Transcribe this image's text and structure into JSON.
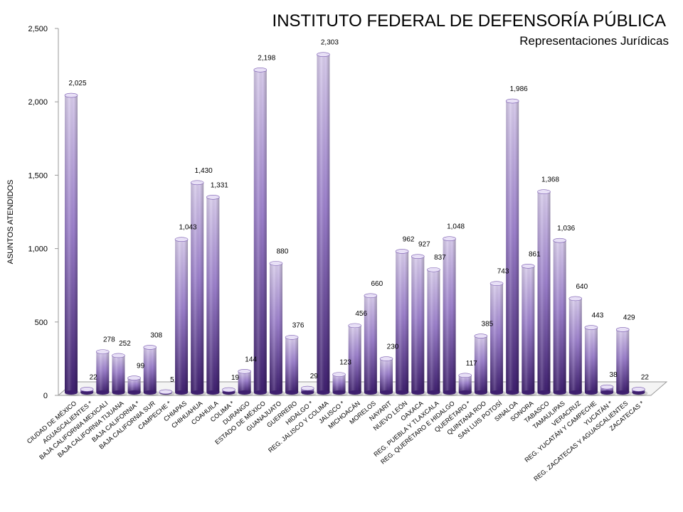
{
  "chart_data": {
    "type": "bar",
    "title": "INSTITUTO FEDERAL DE DEFENSORÍA PÚBLICA",
    "subtitle": "Representaciones  Jurídicas",
    "xlabel": "",
    "ylabel": "ASUNTOS ATENDIDOS",
    "ylim": [
      0,
      2500
    ],
    "yticks": [
      "0",
      "500",
      "1,000",
      "1,500",
      "2,000",
      "2,500"
    ],
    "ytick_values": [
      0,
      500,
      1000,
      1500,
      2000,
      2500
    ],
    "grid": false,
    "legend": "none",
    "bar_color_top": "#d8ccec",
    "bar_color_bottom": "#3e1f6e",
    "categories": [
      "CIUDAD DE MÉXICO",
      "AGUASCALIENTES *",
      "BAJA CALIFORNIA MEXICALI",
      "BAJA CALIFORNIA TIJUANA",
      "BAJA CALIFORNIA  *",
      "BAJA CALIFORNIA SUR",
      "CAMPECHE *",
      "CHIAPAS",
      "CHIHUAHUA",
      "COAHUILA",
      "COLIMA *",
      "DURANGO",
      "ESTADO DE MÉXICO",
      "GUANAJUATO",
      "GUERRERO",
      "HIDALGO *",
      "REG. JALISCO Y COLIMA",
      "JALISCO *",
      "MICHOACÁN",
      "MORELOS",
      "NAYARIT",
      "NUEVO LEÓN",
      "OAXACA",
      "REG. PUEBLA Y TLAXCALA",
      "REG. QUERÉTARO E HIDALGO",
      "QUERÉTARO *",
      "QUINTANA ROO",
      "SAN LUIS POTOSÍ",
      "SINALOA",
      "SONORA",
      "TABASCO",
      "TAMAULIPAS",
      "VERACRUZ",
      "REG. YUCATÁN Y CAMPECHE",
      "YUCATÁN *",
      "REG. ZACATECAS Y AGUASCALIENTES",
      "ZACATECAS *"
    ],
    "values": [
      2025,
      22,
      278,
      252,
      99,
      308,
      5,
      1043,
      1430,
      1331,
      19,
      144,
      2198,
      880,
      376,
      29,
      2303,
      123,
      456,
      660,
      230,
      962,
      927,
      837,
      1048,
      117,
      385,
      743,
      1986,
      861,
      1368,
      1036,
      640,
      443,
      38,
      429,
      22
    ],
    "labels": [
      "2,025",
      "22",
      "278",
      "252",
      "99",
      "308",
      "5",
      "1,043",
      "1,430",
      "1,331",
      "19",
      "144",
      "2,198",
      "880",
      "376",
      "29",
      "2,303",
      "123",
      "456",
      "660",
      "230",
      "962",
      "927",
      "837",
      "1,048",
      "117",
      "385",
      "743",
      "1,986",
      "861",
      "1,368",
      "1,036",
      "640",
      "443",
      "38",
      "429",
      "22"
    ]
  }
}
